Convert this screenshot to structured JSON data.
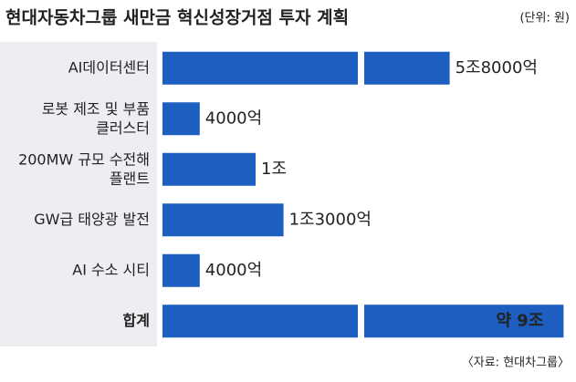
{
  "chart_data": {
    "type": "bar",
    "orientation": "horizontal",
    "title": "현대자동차그룹 새만금 혁신성장거점 투자 계획",
    "unit_note": "(단위: 원)",
    "source": "〈자료: 현대차그룹〉",
    "categories": [
      "AI데이터센터",
      "로봇 제조 및 부품\n클러스터",
      "200MW 규모 수전해\n플랜트",
      "GW급 태양광 발전",
      "AI 수소 시티",
      "합계"
    ],
    "values": [
      58000,
      4000,
      10000,
      13000,
      4000,
      90000
    ],
    "value_labels": [
      "5조8000억",
      "4000억",
      "1조",
      "1조3000억",
      "4000억",
      "약 9조"
    ],
    "color": "#1c5fc0"
  }
}
